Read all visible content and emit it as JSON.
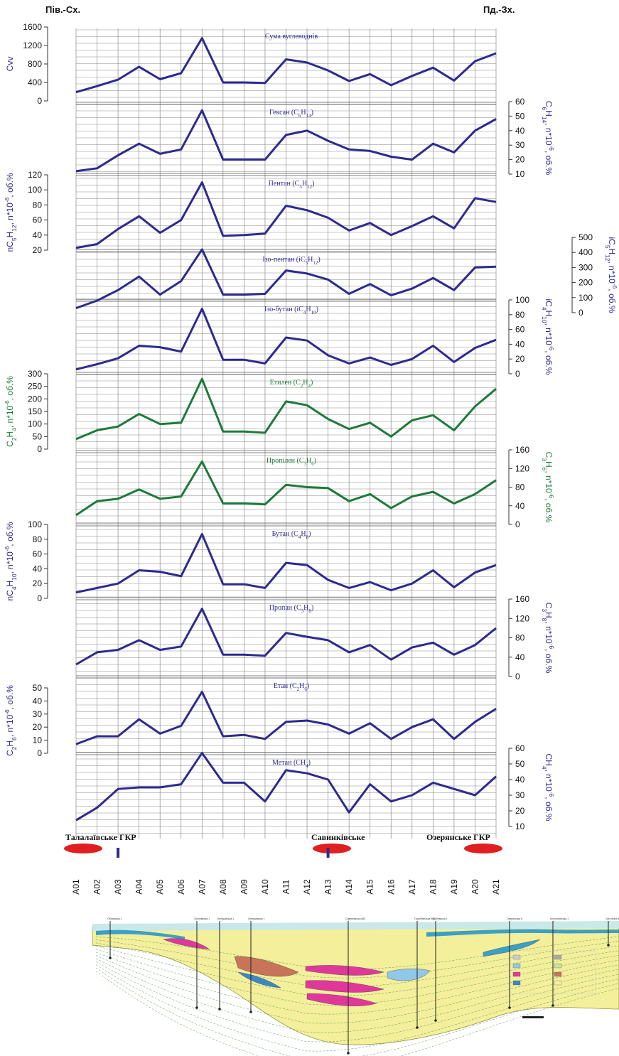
{
  "header": {
    "left": "Пів.-Сх.",
    "right": "Пд.-Зх."
  },
  "colors": {
    "blue": "#2e2a8e",
    "green": "#1e7a3a",
    "grid": "#8a8a8a",
    "field": "#e02020"
  },
  "chart_data": {
    "type": "line",
    "x_axis": {
      "categories": [
        "A01",
        "A02",
        "A03",
        "A04",
        "A05",
        "A06",
        "A07",
        "A08",
        "A09",
        "A10",
        "A11",
        "A12",
        "A13",
        "A14",
        "A15",
        "A16",
        "A17",
        "A18",
        "A19",
        "A20",
        "A21"
      ]
    },
    "panels": [
      {
        "id": "sum",
        "title": "Сума вуглеводнів",
        "ylabel": "Cvv",
        "axis_side": "left",
        "color": "blue",
        "ylim": [
          0,
          1600
        ],
        "ticks": [
          0,
          400,
          800,
          1200,
          1600
        ],
        "values": [
          190,
          320,
          460,
          740,
          470,
          600,
          1360,
          400,
          400,
          390,
          900,
          830,
          660,
          430,
          580,
          340,
          540,
          720,
          440,
          860,
          1030
        ]
      },
      {
        "id": "hexane",
        "title": "Гексан (C6H14)",
        "ylabel": "C6H14, n*10-6, об.%",
        "axis_side": "right",
        "color": "blue",
        "ylim": [
          10,
          60
        ],
        "ticks": [
          10,
          20,
          30,
          40,
          50,
          60
        ],
        "values": [
          12,
          14,
          23,
          31,
          24,
          27,
          54,
          20,
          20,
          20,
          37,
          40,
          33,
          27,
          26,
          22,
          20,
          31,
          25,
          40,
          48
        ]
      },
      {
        "id": "pentane",
        "title": "Пентан (C5H12)",
        "ylabel": "nC5H12, n*10-6, об.%",
        "axis_side": "left",
        "color": "blue",
        "ylim": [
          20,
          120
        ],
        "ticks": [
          20,
          40,
          60,
          80,
          100,
          120
        ],
        "values": [
          23,
          28,
          48,
          65,
          43,
          60,
          110,
          39,
          40,
          42,
          79,
          73,
          63,
          46,
          56,
          40,
          52,
          65,
          49,
          89,
          84
        ]
      },
      {
        "id": "isopentane",
        "title": "Ізо-пентан (iC5H12)",
        "ylabel": "iC5H12, n*10-6, об.%",
        "axis_side": "right",
        "color": "blue",
        "ylim": [
          0,
          500
        ],
        "ticks": [
          0,
          100,
          200,
          300,
          400,
          500
        ],
        "values": [
          30,
          80,
          150,
          240,
          120,
          210,
          420,
          120,
          120,
          125,
          280,
          260,
          220,
          125,
          190,
          115,
          160,
          230,
          150,
          300,
          305
        ]
      },
      {
        "id": "isobutane",
        "title": "Ізо-бутан (iC4H10)",
        "ylabel": "iC4H10, n*10-6, об.%",
        "axis_side": "right",
        "color": "blue",
        "ylim": [
          0,
          100
        ],
        "ticks": [
          0,
          20,
          40,
          60,
          80,
          100
        ],
        "values": [
          6,
          13,
          21,
          38,
          36,
          30,
          88,
          19,
          19,
          14,
          49,
          45,
          25,
          14,
          22,
          12,
          20,
          38,
          16,
          35,
          46
        ]
      },
      {
        "id": "ethylene",
        "title": "Етилен (C2H4)",
        "ylabel": "C2H4, n*10-6, об.%",
        "axis_side": "left",
        "color": "green",
        "ylim": [
          0,
          300
        ],
        "ticks": [
          0,
          50,
          100,
          150,
          200,
          250,
          300
        ],
        "values": [
          40,
          75,
          90,
          140,
          100,
          105,
          280,
          70,
          70,
          65,
          190,
          175,
          120,
          80,
          105,
          50,
          115,
          135,
          75,
          170,
          240
        ]
      },
      {
        "id": "propylene",
        "title": "Пропілен (C3H6)",
        "ylabel": "C3H6, n*10-6, об.%",
        "axis_side": "right",
        "color": "green",
        "ylim": [
          0,
          160
        ],
        "ticks": [
          0,
          40,
          80,
          120,
          160
        ],
        "values": [
          20,
          50,
          55,
          75,
          55,
          60,
          135,
          45,
          45,
          43,
          85,
          80,
          78,
          50,
          65,
          35,
          60,
          70,
          45,
          65,
          95
        ]
      },
      {
        "id": "butane",
        "title": "Бутан (C4H8)",
        "ylabel": "nC4H10, n*10-6, об.%",
        "axis_side": "left",
        "color": "blue",
        "ylim": [
          0,
          100
        ],
        "ticks": [
          0,
          20,
          40,
          60,
          80,
          100
        ],
        "values": [
          8,
          14,
          20,
          38,
          36,
          30,
          87,
          19,
          19,
          14,
          48,
          45,
          25,
          14,
          22,
          11,
          20,
          38,
          15,
          35,
          45
        ]
      },
      {
        "id": "propane",
        "title": "Пропан (C3H8)",
        "ylabel": "C3H8, n*10-6, об.%",
        "axis_side": "right",
        "color": "blue",
        "ylim": [
          0,
          160
        ],
        "ticks": [
          0,
          40,
          80,
          120,
          160
        ],
        "values": [
          25,
          50,
          55,
          75,
          55,
          62,
          140,
          45,
          45,
          43,
          90,
          82,
          75,
          50,
          65,
          35,
          60,
          70,
          45,
          65,
          100
        ]
      },
      {
        "id": "ethane",
        "title": "Етан (C2H6)",
        "ylabel": "C2H6, n*10-6, об.%",
        "axis_side": "left",
        "color": "blue",
        "ylim": [
          0,
          50
        ],
        "ticks": [
          0,
          10,
          20,
          30,
          40,
          50
        ],
        "values": [
          7,
          13,
          13,
          26,
          15,
          21,
          47,
          13,
          14,
          11,
          24,
          25,
          22,
          15,
          23,
          11,
          20,
          26,
          11,
          24,
          34
        ]
      },
      {
        "id": "methane",
        "title": "Метан (CH4)",
        "ylabel": "CH4, n*10-6, об.%",
        "axis_side": "right",
        "color": "blue",
        "ylim": [
          10,
          60
        ],
        "ticks": [
          10,
          20,
          30,
          40,
          50,
          60
        ],
        "values": [
          14,
          22,
          34,
          35,
          35,
          37,
          57,
          38,
          38,
          26,
          46,
          44,
          40,
          19,
          37,
          26,
          30,
          38,
          34,
          30,
          42
        ]
      }
    ],
    "fields": [
      {
        "label": "Талалаївське ГКР",
        "from": "A01",
        "to": "A02"
      },
      {
        "label": "Савинківське",
        "from": "A13",
        "to": "A14"
      },
      {
        "label": "Озерянське ГКР",
        "from": "A20",
        "to": "A21"
      }
    ],
    "markers": [
      "A03",
      "A13"
    ]
  },
  "section": {
    "wells": [
      {
        "label": "Обоянська 1",
        "x": "A03"
      },
      {
        "label": "Золочівська 1",
        "x": "A07"
      },
      {
        "label": "Огульцівська 1",
        "x": "A08"
      },
      {
        "label": "Олешківська 1",
        "x": "A10"
      },
      {
        "label": "Савинківська 864",
        "x": "A14"
      },
      {
        "label": "Гороблянська 860",
        "x": "A17"
      },
      {
        "label": "Бубнівська 1",
        "x": "A18"
      },
      {
        "label": "Озерянська 8",
        "x": "A20"
      },
      {
        "label": "Колонтаївська 1",
        "x": "A21"
      },
      {
        "label": "Світлична 4",
        "x": "A21"
      }
    ]
  }
}
